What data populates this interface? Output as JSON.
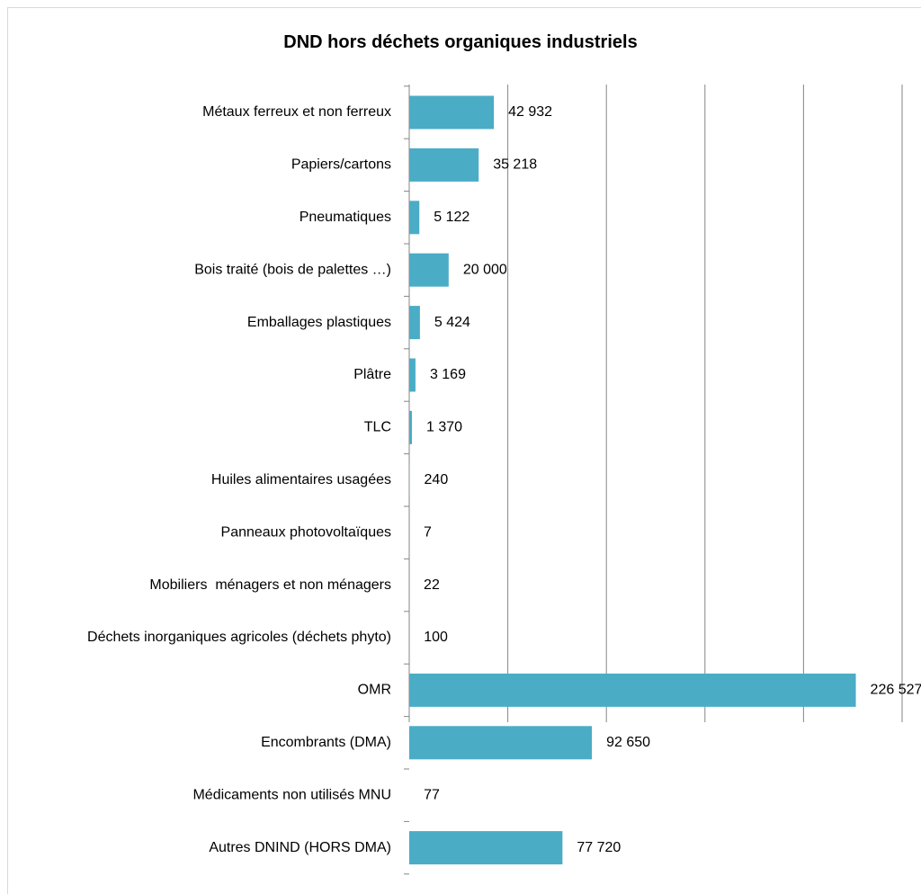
{
  "chart_data": {
    "type": "bar",
    "orientation": "horizontal",
    "title": "DND hors déchets organiques industriels",
    "categories": [
      "Métaux ferreux et non ferreux",
      "Papiers/cartons",
      "Pneumatiques",
      "Bois traité (bois de palettes …)",
      "Emballages plastiques",
      "Plâtre",
      "TLC",
      "Huiles alimentaires usagées",
      "Panneaux photovoltaïques",
      "Mobiliers  ménagers et non ménagers",
      "Déchets inorganiques agricoles (déchets phyto)",
      "OMR",
      "Encombrants (DMA)",
      "Médicaments non utilisés MNU",
      "Autres DNIND (HORS DMA)"
    ],
    "values": [
      42932,
      35218,
      5122,
      20000,
      5424,
      3169,
      1370,
      240,
      7,
      22,
      100,
      226527,
      92650,
      77,
      77720
    ],
    "value_labels": [
      "42 932",
      "35 218",
      "5 122",
      "20 000",
      "5 424",
      "3 169",
      "1 370",
      "240",
      "7",
      "22",
      "100",
      "226 527",
      "92 650",
      "77",
      "77 720"
    ],
    "xlim": [
      0,
      250000
    ],
    "x_gridlines": [
      0,
      50000,
      100000,
      150000,
      200000,
      250000
    ],
    "x_tick_labels_visible": false,
    "grid": true,
    "legend": "none",
    "bar_color": "#4bacc6",
    "gridline_color": "#868686"
  }
}
